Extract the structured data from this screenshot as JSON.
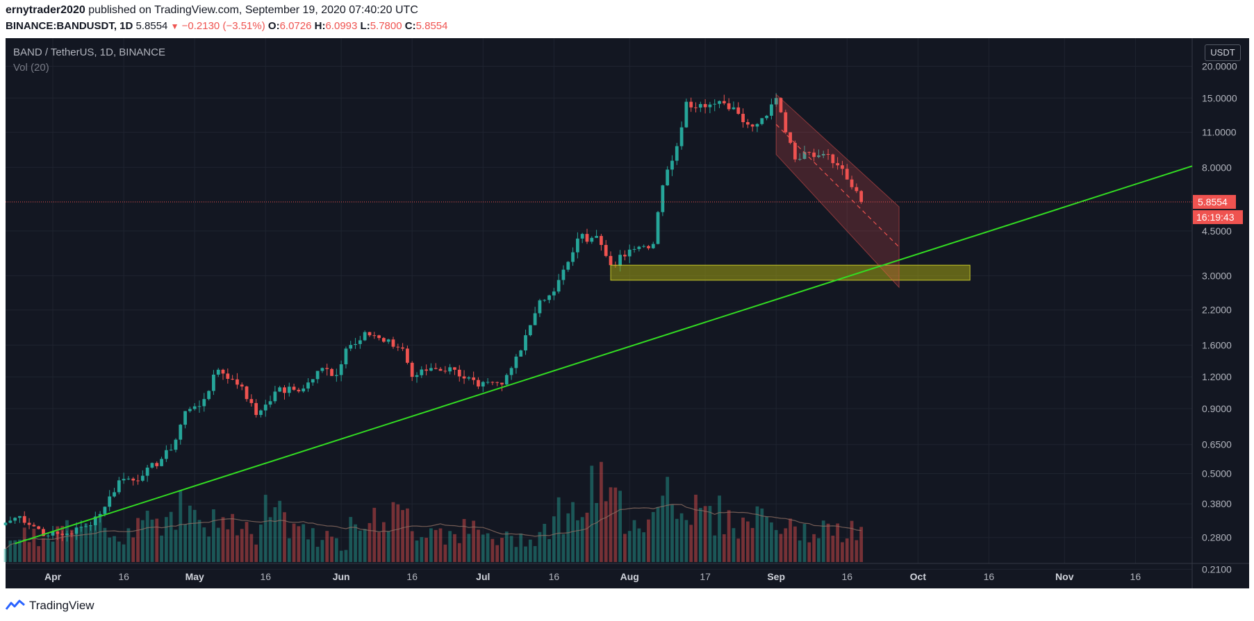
{
  "header": {
    "author": "ernytrader2020",
    "published": " published on TradingView.com, September 19, 2020 07:40:20 UTC",
    "symbol": "BINANCE:BANDUSDT, 1D",
    "last": "5.8554",
    "change": "−0.2130 (−3.51%)",
    "o_label": "O:",
    "o_val": "6.0726",
    "h_label": "H:",
    "h_val": "6.0993",
    "l_label": "L:",
    "l_val": "5.7800",
    "c_label": "C:",
    "c_val": "5.8554"
  },
  "legend": {
    "title": "BAND / TetherUS, 1D, BINANCE",
    "volume": "Vol (20)"
  },
  "price_axis": {
    "currency": "USDT",
    "current_price": "5.8554",
    "countdown": "16:19:43"
  },
  "footer": {
    "brand": "TradingView"
  },
  "colors": {
    "background": "#131722",
    "up": "#26a69a",
    "down": "#ef5350",
    "trendline": "#33dd22",
    "support_zone": "#a3a313",
    "channel": "#ef5350"
  },
  "chart_data": {
    "type": "candlestick",
    "scale": "log",
    "ylim": [
      0.18,
      25
    ],
    "y_ticks": [
      {
        "v": 20,
        "label": "20.0000"
      },
      {
        "v": 15,
        "label": "15.0000"
      },
      {
        "v": 11,
        "label": "11.0000"
      },
      {
        "v": 8,
        "label": "8.0000"
      },
      {
        "v": 4.5,
        "label": "4.5000"
      },
      {
        "v": 3,
        "label": "3.0000"
      },
      {
        "v": 2.2,
        "label": "2.2000"
      },
      {
        "v": 1.6,
        "label": "1.6000"
      },
      {
        "v": 1.2,
        "label": "1.2000"
      },
      {
        "v": 0.9,
        "label": "0.9000"
      },
      {
        "v": 0.65,
        "label": "0.6500"
      },
      {
        "v": 0.5,
        "label": "0.5000"
      },
      {
        "v": 0.38,
        "label": "0.3800"
      },
      {
        "v": 0.28,
        "label": "0.2800"
      },
      {
        "v": 0.21,
        "label": "0.2100"
      }
    ],
    "x_ticks": [
      {
        "date": "2020-04-01",
        "label": "Apr"
      },
      {
        "date": "2020-04-16",
        "label": "16"
      },
      {
        "date": "2020-05-01",
        "label": "May"
      },
      {
        "date": "2020-05-16",
        "label": "16"
      },
      {
        "date": "2020-06-01",
        "label": "Jun"
      },
      {
        "date": "2020-06-16",
        "label": "16"
      },
      {
        "date": "2020-07-01",
        "label": "Jul"
      },
      {
        "date": "2020-07-16",
        "label": "16"
      },
      {
        "date": "2020-08-01",
        "label": "Aug"
      },
      {
        "date": "2020-08-17",
        "label": "17"
      },
      {
        "date": "2020-09-01",
        "label": "Sep"
      },
      {
        "date": "2020-09-16",
        "label": "16"
      },
      {
        "date": "2020-10-01",
        "label": "Oct"
      },
      {
        "date": "2020-10-16",
        "label": "16"
      },
      {
        "date": "2020-11-01",
        "label": "Nov"
      },
      {
        "date": "2020-11-16",
        "label": "16"
      }
    ],
    "x_start": "2020-03-22",
    "x_end": "2020-11-28",
    "key_points": [
      {
        "date": "2020-03-22",
        "close": 0.32
      },
      {
        "date": "2020-03-25",
        "close": 0.34
      },
      {
        "date": "2020-03-31",
        "close": 0.285
      },
      {
        "date": "2020-04-04",
        "close": 0.29
      },
      {
        "date": "2020-04-08",
        "close": 0.31
      },
      {
        "date": "2020-04-12",
        "close": 0.37
      },
      {
        "date": "2020-04-15",
        "close": 0.47
      },
      {
        "date": "2020-04-20",
        "close": 0.49
      },
      {
        "date": "2020-04-26",
        "close": 0.62
      },
      {
        "date": "2020-04-29",
        "close": 0.88
      },
      {
        "date": "2020-05-02",
        "close": 0.92
      },
      {
        "date": "2020-05-06",
        "close": 1.28
      },
      {
        "date": "2020-05-11",
        "close": 1.1
      },
      {
        "date": "2020-05-14",
        "close": 0.85
      },
      {
        "date": "2020-05-18",
        "close": 1.05
      },
      {
        "date": "2020-05-24",
        "close": 1.08
      },
      {
        "date": "2020-05-28",
        "close": 1.3
      },
      {
        "date": "2020-05-31",
        "close": 1.22
      },
      {
        "date": "2020-06-02",
        "close": 1.55
      },
      {
        "date": "2020-06-06",
        "close": 1.8
      },
      {
        "date": "2020-06-10",
        "close": 1.65
      },
      {
        "date": "2020-06-14",
        "close": 1.55
      },
      {
        "date": "2020-06-16",
        "close": 1.2
      },
      {
        "date": "2020-06-20",
        "close": 1.3
      },
      {
        "date": "2020-06-25",
        "close": 1.28
      },
      {
        "date": "2020-06-30",
        "close": 1.1
      },
      {
        "date": "2020-07-05",
        "close": 1.12
      },
      {
        "date": "2020-07-07",
        "close": 1.3
      },
      {
        "date": "2020-07-10",
        "close": 1.75
      },
      {
        "date": "2020-07-13",
        "close": 2.4
      },
      {
        "date": "2020-07-16",
        "close": 2.6
      },
      {
        "date": "2020-07-19",
        "close": 3.4
      },
      {
        "date": "2020-07-21",
        "close": 4.2
      },
      {
        "date": "2020-07-25",
        "close": 4.3
      },
      {
        "date": "2020-07-28",
        "close": 3.3
      },
      {
        "date": "2020-08-03",
        "close": 3.9
      },
      {
        "date": "2020-08-06",
        "close": 4.0
      },
      {
        "date": "2020-08-08",
        "close": 6.8
      },
      {
        "date": "2020-08-10",
        "close": 8.5
      },
      {
        "date": "2020-08-12",
        "close": 11.5
      },
      {
        "date": "2020-08-13",
        "close": 14.5
      },
      {
        "date": "2020-08-17",
        "close": 13.8
      },
      {
        "date": "2020-08-21",
        "close": 14.3
      },
      {
        "date": "2020-08-24",
        "close": 13.0
      },
      {
        "date": "2020-08-26",
        "close": 11.8
      },
      {
        "date": "2020-08-29",
        "close": 12.5
      },
      {
        "date": "2020-09-01",
        "close": 15.0
      },
      {
        "date": "2020-09-03",
        "close": 11.0
      },
      {
        "date": "2020-09-05",
        "close": 8.6
      },
      {
        "date": "2020-09-07",
        "close": 9.2
      },
      {
        "date": "2020-09-12",
        "close": 9.0
      },
      {
        "date": "2020-09-15",
        "close": 7.9
      },
      {
        "date": "2020-09-19",
        "close": 5.8554
      }
    ],
    "volume_profile": [
      0.3,
      0.32,
      0.28,
      0.4,
      0.35,
      0.5,
      0.45,
      0.38,
      0.62,
      0.55,
      0.7,
      0.6,
      0.48,
      0.52,
      0.4,
      0.35,
      0.9,
      0.5,
      0.45,
      0.3,
      0.25,
      0.7,
      0.5,
      0.6,
      0.55,
      0.42,
      0.45,
      0.38,
      0.4,
      0.33,
      0.28,
      0.3,
      0.35,
      0.5,
      0.62,
      0.7,
      0.9,
      0.75,
      0.6,
      0.55,
      1.0,
      0.8,
      0.65,
      0.6,
      0.58,
      0.45,
      0.62,
      0.5,
      0.4,
      0.38,
      0.42,
      0.35,
      0.4
    ],
    "overlays": {
      "trendline": [
        {
          "date": "2020-03-24",
          "price": 0.265
        },
        {
          "date": "2020-11-28",
          "price": 8.1
        }
      ],
      "support_zone": {
        "from": "2020-07-28",
        "to": "2020-10-12",
        "low": 2.88,
        "high": 3.3
      },
      "channel_upper": [
        {
          "date": "2020-09-01",
          "price": 15.5
        },
        {
          "date": "2020-09-27",
          "price": 5.6
        }
      ],
      "channel_lower": [
        {
          "date": "2020-09-01",
          "price": 9.0
        },
        {
          "date": "2020-09-27",
          "price": 2.7
        }
      ]
    }
  }
}
